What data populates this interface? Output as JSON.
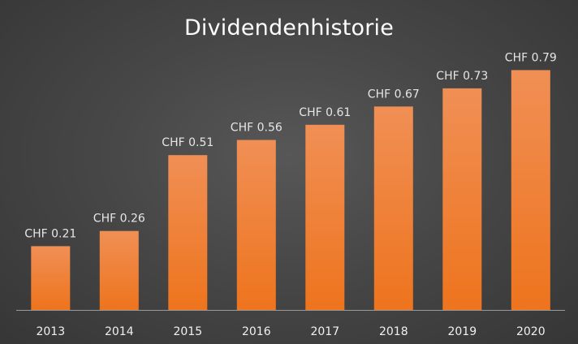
{
  "chart_data": {
    "type": "bar",
    "title": "Dividendenhistorie",
    "xlabel": "",
    "ylabel": "",
    "categories": [
      "2013",
      "2014",
      "2015",
      "2016",
      "2017",
      "2018",
      "2019",
      "2020"
    ],
    "values": [
      0.21,
      0.26,
      0.51,
      0.56,
      0.61,
      0.67,
      0.73,
      0.79
    ],
    "data_labels": [
      "CHF 0.21",
      "CHF 0.26",
      "CHF 0.51",
      "CHF 0.56",
      "CHF 0.61",
      "CHF 0.67",
      "CHF 0.73",
      "CHF 0.79"
    ],
    "ylim": [
      0,
      0.85
    ],
    "grid": false,
    "legend": "none",
    "colors": {
      "bar_top": "#f08f55",
      "bar_bottom": "#ee741d",
      "axis": "#9a9a9a",
      "text": "#ffffff"
    }
  }
}
